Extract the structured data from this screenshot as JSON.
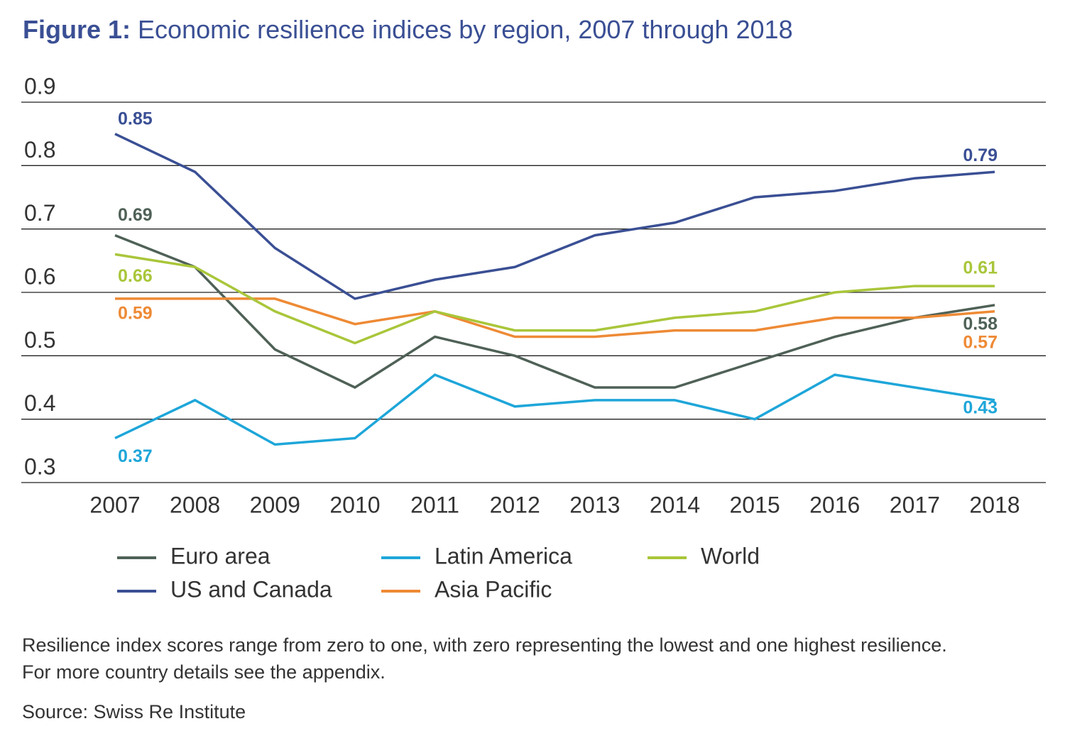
{
  "chart_data": {
    "type": "line",
    "figure_label": "Figure 1:",
    "title": "Economic resilience indices by region, 2007 through 2018",
    "categories": [
      "2007",
      "2008",
      "2009",
      "2010",
      "2011",
      "2012",
      "2013",
      "2014",
      "2015",
      "2016",
      "2017",
      "2018"
    ],
    "series": [
      {
        "name": "Euro area",
        "color": "#4f6157",
        "values": [
          0.69,
          0.64,
          0.51,
          0.45,
          0.53,
          0.5,
          0.45,
          0.45,
          0.49,
          0.53,
          0.56,
          0.58
        ]
      },
      {
        "name": "US and Canada",
        "color": "#3a4f94",
        "values": [
          0.85,
          0.79,
          0.67,
          0.59,
          0.62,
          0.64,
          0.69,
          0.71,
          0.75,
          0.76,
          0.78,
          0.79
        ]
      },
      {
        "name": "Latin America",
        "color": "#1ea6d9",
        "values": [
          0.37,
          0.43,
          0.36,
          0.37,
          0.47,
          0.42,
          0.43,
          0.43,
          0.4,
          0.47,
          0.45,
          0.43
        ]
      },
      {
        "name": "Asia Pacific",
        "color": "#ee8a35",
        "values": [
          0.59,
          0.59,
          0.59,
          0.55,
          0.57,
          0.53,
          0.53,
          0.54,
          0.54,
          0.56,
          0.56,
          0.57
        ]
      },
      {
        "name": "World",
        "color": "#a9c63a",
        "values": [
          0.66,
          0.64,
          0.57,
          0.52,
          0.57,
          0.54,
          0.54,
          0.56,
          0.57,
          0.6,
          0.61,
          0.61
        ]
      }
    ],
    "ylim": [
      0.3,
      0.9
    ],
    "yticks": [
      0.3,
      0.4,
      0.5,
      0.6,
      0.7,
      0.8,
      0.9
    ],
    "grid": true,
    "note": "Resilience index scores range from zero to one, with zero representing the lowest and one highest resilience. For more country details see the appendix.",
    "source": "Source: Swiss Re Institute"
  }
}
